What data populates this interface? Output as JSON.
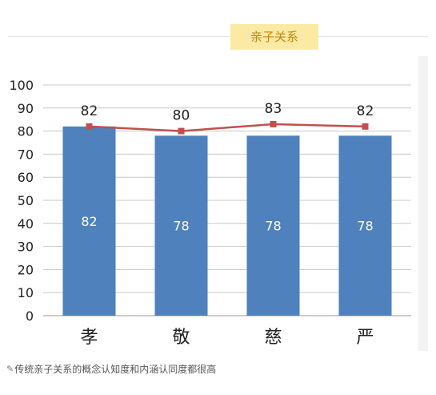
{
  "header": {
    "title": "亲子关系"
  },
  "caption": {
    "text": "传统亲子关系的概念认知度和内涵认同度都很高"
  },
  "icons": {
    "caption_icon": "pen-icon"
  },
  "colors": {
    "bar": "#4f81bd",
    "line": "#c0504d",
    "grid": "#c8c8c8",
    "title_bg": "#fbeaa4",
    "title_text": "#c8860a"
  },
  "chart_data": {
    "type": "bar",
    "categories": [
      "孝",
      "敬",
      "慈",
      "严"
    ],
    "series": [
      {
        "type": "bar",
        "values": [
          82,
          78,
          78,
          78
        ]
      },
      {
        "type": "line",
        "values": [
          82,
          80,
          83,
          82
        ]
      }
    ],
    "ylim": [
      0,
      100
    ],
    "yticks": [
      0,
      10,
      20,
      30,
      40,
      50,
      60,
      70,
      80,
      90,
      100
    ],
    "grid": true,
    "legend": "none"
  }
}
